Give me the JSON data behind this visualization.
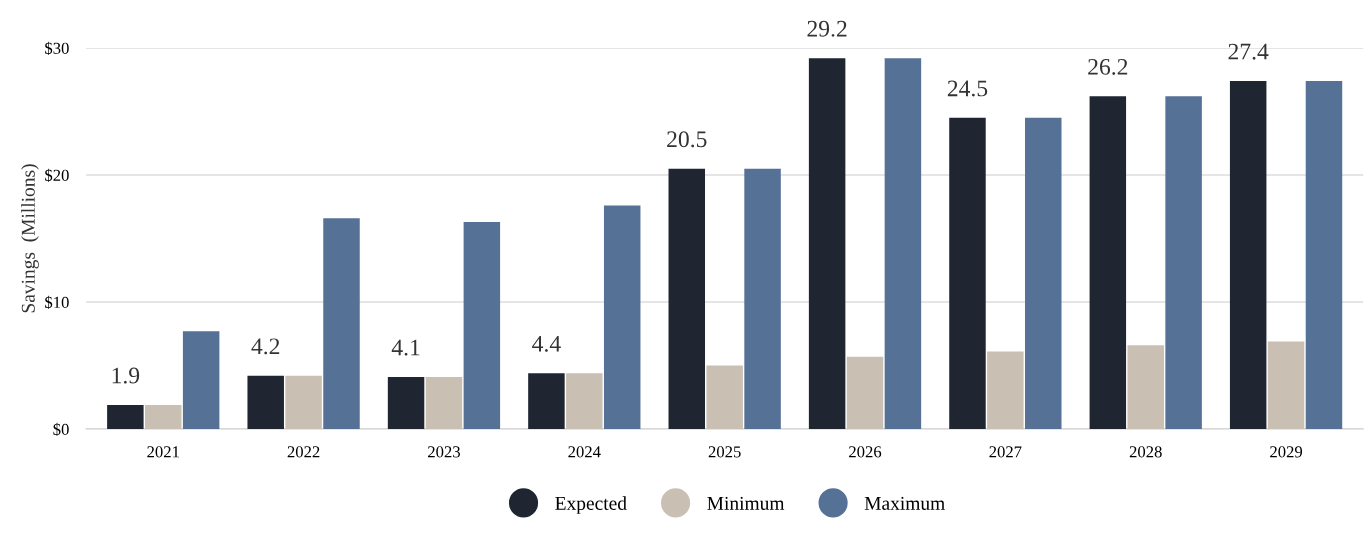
{
  "chart_data": {
    "type": "bar",
    "ylabel": "Savings  (Millions)",
    "categories": [
      "2021",
      "2022",
      "2023",
      "2024",
      "2025",
      "2026",
      "2027",
      "2028",
      "2029"
    ],
    "series": [
      {
        "name": "Expected",
        "color": "#1f2631",
        "values": [
          1.9,
          4.2,
          4.1,
          4.4,
          20.5,
          29.2,
          24.5,
          26.2,
          27.4
        ],
        "value_labels": [
          "1.9",
          "4.2",
          "4.1",
          "4.4",
          "20.5",
          "29.2",
          "24.5",
          "26.2",
          "27.4"
        ]
      },
      {
        "name": "Minimum",
        "color": "#c9c0b3",
        "values": [
          1.9,
          4.2,
          4.1,
          4.4,
          5.0,
          5.7,
          6.1,
          6.6,
          6.9
        ]
      },
      {
        "name": "Maximum",
        "color": "#557196",
        "values": [
          7.7,
          16.6,
          16.3,
          17.6,
          20.5,
          29.2,
          24.5,
          26.2,
          27.4
        ]
      }
    ],
    "ylim": [
      0,
      30
    ],
    "yticks": [
      {
        "value": 0,
        "label": "$0"
      },
      {
        "value": 10,
        "label": "$10"
      },
      {
        "value": 20,
        "label": "$20"
      },
      {
        "value": 30,
        "label": "$30"
      }
    ],
    "grid": "y",
    "legend": "bottom"
  }
}
